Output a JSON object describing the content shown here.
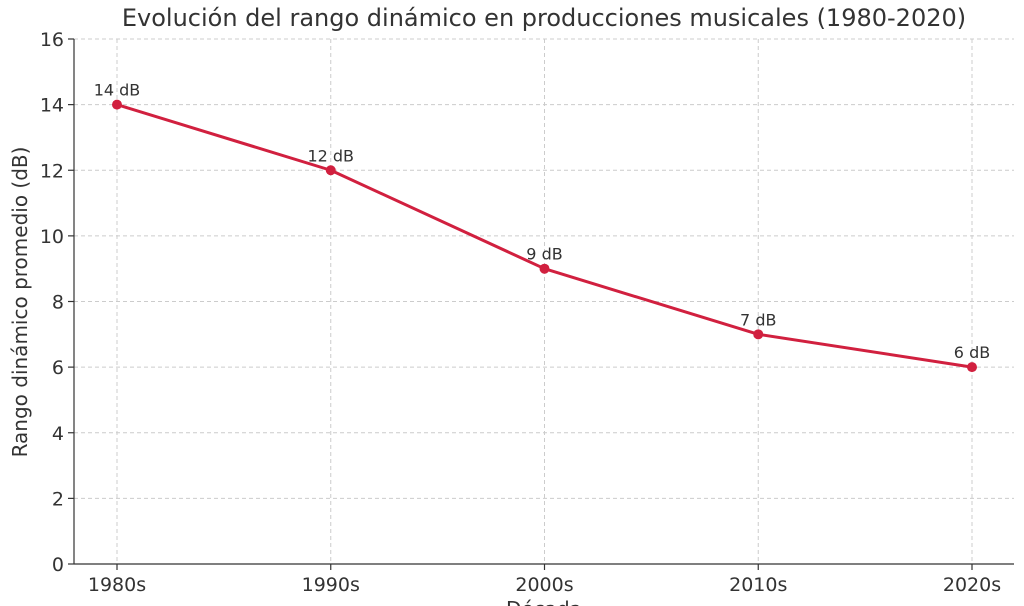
{
  "chart_data": {
    "type": "line",
    "title": "Evolución del rango dinámico en producciones musicales (1980-2020)",
    "xlabel": "Década",
    "ylabel": "Rango dinámico promedio (dB)",
    "categories": [
      "1980s",
      "1990s",
      "2000s",
      "2010s",
      "2020s"
    ],
    "series": [
      {
        "values": [
          14,
          12,
          9,
          7,
          6
        ],
        "labels": [
          "14 dB",
          "12 dB",
          "9 dB",
          "7 dB",
          "6 dB"
        ],
        "color": "#d1203f"
      }
    ],
    "ylim": [
      0,
      16
    ],
    "yticks": [
      0,
      2,
      4,
      6,
      8,
      10,
      12,
      14,
      16
    ],
    "grid": true,
    "legend": "none"
  }
}
